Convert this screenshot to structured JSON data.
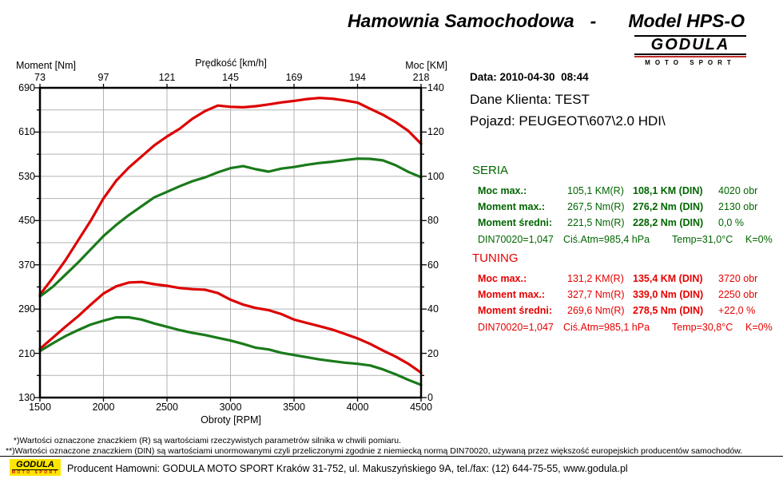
{
  "header": {
    "title_left": "Hamownia Samochodowa",
    "title_sep": "-",
    "title_right": "Model HPS-O",
    "logo_name": "GODULA",
    "logo_sub": "MOTO SPORT"
  },
  "info": {
    "date_line": "Data: 2010-04-30  08:44",
    "client_line": "Dane Klienta: TEST",
    "vehicle_line": "Pojazd: PEUGEOT\\607\\2.0 HDI\\"
  },
  "seria": {
    "title": "SERIA",
    "color": "#006600",
    "rows": [
      {
        "label": "Moc max.:",
        "r": "105,1 KM(R)",
        "din": "108,1 KM (DIN)",
        "extra": "4020 obr"
      },
      {
        "label": "Moment max.:",
        "r": "267,5 Nm(R)",
        "din": "276,2 Nm (DIN)",
        "extra": "2130 obr"
      },
      {
        "label": "Moment średni:",
        "r": "221,5 Nm(R)",
        "din": "228,2 Nm (DIN)",
        "extra": "0,0 %"
      }
    ],
    "din_row": {
      "a": "DIN70020=1,047",
      "b": "Ciś.Atm=985,4 hPa",
      "c": "Temp=31,0°C",
      "d": "K=0%"
    }
  },
  "tuning": {
    "title": "TUNING",
    "color": "#e60000",
    "rows": [
      {
        "label": "Moc max.:",
        "r": "131,2 KM(R)",
        "din": "135,4 KM (DIN)",
        "extra": "3720 obr"
      },
      {
        "label": "Moment max.:",
        "r": "327,7 Nm(R)",
        "din": "339,0 Nm (DIN)",
        "extra": "2250 obr"
      },
      {
        "label": "Moment średni:",
        "r": "269,6 Nm(R)",
        "din": "278,5 Nm (DIN)",
        "extra": "+22,0 %"
      }
    ],
    "din_row": {
      "a": "DIN70020=1,047",
      "b": "Ciś.Atm=985,1 hPa",
      "c": "Temp=30,8°C",
      "d": "K=0%"
    }
  },
  "footnotes": {
    "line1": " *)Wartości oznaczone znaczkiem (R) są wartościami rzeczywistych parametrów silnika w chwili pomiaru.",
    "line2": "**)Wartości oznaczone znaczkiem (DIN) są wartościami unormowanymi czyli przeliczonymi zgodnie z niemiecką normą DIN70020, używaną przez większość europejskich producentów samochodów."
  },
  "footer": {
    "logo_name": "GODULA",
    "logo_sub": "MOTO SPORT",
    "text": "Producent Hamowni: GODULA MOTO SPORT Kraków 31-752, ul. Makuszyńskiego 9A, tel./fax: (12) 644-75-55, www.godula.pl"
  },
  "chart_data": {
    "type": "line",
    "grid": true,
    "legend_position": "none",
    "axes": {
      "top": {
        "label": "Prędkość [km/h]",
        "ticks": [
          73,
          97,
          121,
          145,
          169,
          194,
          218
        ]
      },
      "bottom": {
        "label": "Obroty [RPM]",
        "ticks": [
          1500,
          2000,
          2500,
          3000,
          3500,
          4000,
          4500
        ],
        "range": [
          1500,
          4500
        ]
      },
      "left": {
        "label": "Moment [Nm]",
        "ticks": [
          690,
          610,
          530,
          450,
          370,
          290,
          210,
          130
        ],
        "range": [
          130,
          690
        ],
        "minor_step": 40
      },
      "right": {
        "label": "Moc [KM]",
        "ticks": [
          140,
          120,
          100,
          80,
          60,
          40,
          20,
          0
        ],
        "range": [
          0,
          140
        ],
        "minor_step": 10
      }
    },
    "x_rpm": [
      1500,
      1600,
      1700,
      1800,
      1900,
      2000,
      2100,
      2200,
      2300,
      2400,
      2500,
      2600,
      2700,
      2800,
      2900,
      3000,
      3100,
      3200,
      3300,
      3400,
      3500,
      3600,
      3700,
      3800,
      3900,
      4000,
      4100,
      4200,
      4300,
      4400,
      4500
    ],
    "series": [
      {
        "id": "tuning-moment",
        "name": "TUNING Moment [Nm]",
        "axis": "left",
        "color": "#dd0000",
        "values": [
          218,
          238,
          258,
          277,
          298,
          318,
          331,
          338,
          339,
          335,
          332,
          328,
          326,
          325,
          319,
          307,
          298,
          292,
          288,
          281,
          271,
          265,
          259,
          253,
          245,
          237,
          227,
          215,
          204,
          191,
          175
        ]
      },
      {
        "id": "seria-moment",
        "name": "SERIA Moment [Nm]",
        "axis": "left",
        "color": "#1a7a1a",
        "values": [
          214,
          228,
          241,
          252,
          262,
          269,
          275,
          275,
          271,
          264,
          258,
          252,
          247,
          243,
          238,
          233,
          227,
          220,
          217,
          211,
          207,
          203,
          199,
          196,
          193,
          191,
          188,
          181,
          172,
          162,
          153
        ]
      },
      {
        "id": "tuning-moc",
        "name": "TUNING Moc [KM]",
        "axis": "right",
        "color": "#dd0000",
        "values": [
          46.5,
          54,
          62,
          71,
          80,
          90,
          98,
          104,
          109,
          114,
          118,
          121.5,
          126,
          129.5,
          132,
          131.4,
          131.2,
          131.7,
          132.5,
          133.4,
          134.1,
          134.9,
          135.4,
          135.1,
          134.3,
          133.3,
          130.5,
          127.8,
          124.5,
          120.5,
          114.7
        ]
      },
      {
        "id": "seria-moc",
        "name": "SERIA Moc [KM]",
        "axis": "right",
        "color": "#1a7a1a",
        "values": [
          45.7,
          50,
          55.5,
          61,
          67,
          73,
          78,
          82.5,
          86.5,
          90.5,
          93,
          95.5,
          97.8,
          99.5,
          101.8,
          103.7,
          104.6,
          103.2,
          102.1,
          103.5,
          104.2,
          105.2,
          106,
          106.6,
          107.3,
          108,
          107.9,
          107.2,
          105,
          102,
          99.6
        ]
      }
    ]
  }
}
